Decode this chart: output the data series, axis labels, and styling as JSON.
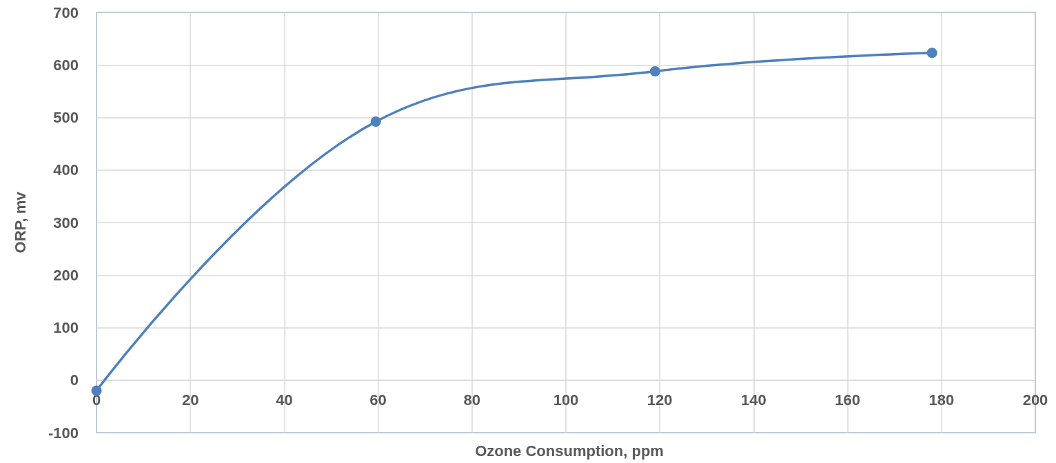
{
  "chart_data": {
    "type": "line",
    "xlabel": "Ozone Consumption, ppm",
    "ylabel": "ORP, mv",
    "series": [
      {
        "color": "#4f81bd",
        "x": [
          0,
          59.5,
          119,
          178
        ],
        "values": [
          -20,
          492,
          588,
          623
        ]
      }
    ],
    "xlim": [
      0,
      200
    ],
    "xticks": [
      0,
      20,
      40,
      60,
      80,
      100,
      120,
      140,
      160,
      180,
      200
    ],
    "ylim": [
      -100,
      700
    ],
    "yticks": [
      -100,
      0,
      100,
      200,
      300,
      400,
      500,
      600,
      700
    ],
    "grid": true,
    "marker": "circle",
    "line_style": "solid"
  }
}
